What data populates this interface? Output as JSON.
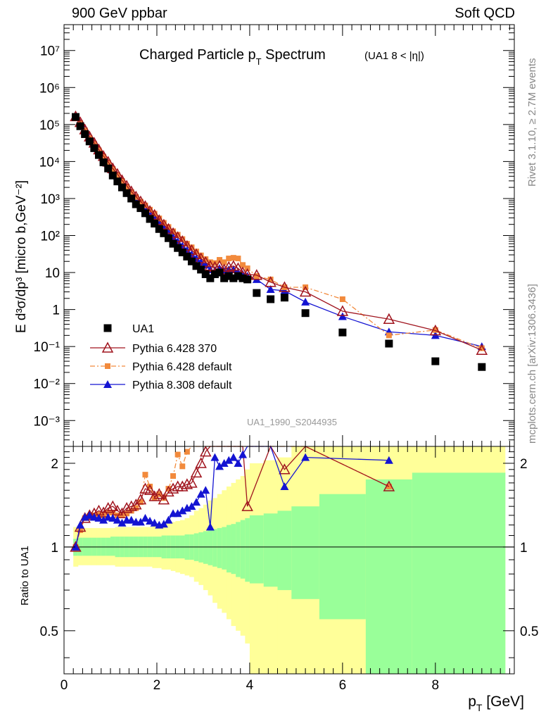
{
  "header": {
    "left": "900 GeV ppbar",
    "right": "Soft QCD"
  },
  "side_text": {
    "rivet": "Rivet 3.1.10, ≥ 2.7M events",
    "source": "mcplots.cern.ch [arXiv:1306.3436]"
  },
  "chart_data": [
    {
      "type": "scatter",
      "panel": "main",
      "title_main": "Charged Particle p",
      "title_sub": "T",
      "title_rest": " Spectrum",
      "title_cut": "(UA1   8 < |η|)",
      "ylabel": "E d³σ/dp³ [micro b,GeV⁻²]",
      "watermark": "UA1_1990_S2044935",
      "yscale": "log",
      "xlim": [
        0,
        9.7
      ],
      "ylim": [
        0.0002,
        50000000
      ],
      "ytick_labels": [
        "10⁷",
        "10⁶",
        "10⁵",
        "10⁴",
        "10³",
        "10²",
        "10",
        "1",
        "10⁻¹",
        "10⁻²",
        "10⁻³"
      ],
      "ytick_values": [
        10000000,
        1000000,
        100000,
        10000,
        1000,
        100,
        10,
        1,
        0.1,
        0.01,
        0.001
      ],
      "legend_placement": "lower-left",
      "x": [
        0.25,
        0.35,
        0.45,
        0.55,
        0.65,
        0.75,
        0.85,
        0.95,
        1.05,
        1.15,
        1.25,
        1.35,
        1.45,
        1.55,
        1.65,
        1.75,
        1.85,
        1.95,
        2.05,
        2.15,
        2.25,
        2.35,
        2.45,
        2.55,
        2.65,
        2.75,
        2.85,
        2.95,
        3.05,
        3.15,
        3.25,
        3.35,
        3.45,
        3.55,
        3.65,
        3.75,
        3.85,
        3.95,
        4.15,
        4.45,
        4.75,
        5.2,
        6.0,
        7.0,
        8.0,
        9.0
      ],
      "series": [
        {
          "name": "UA1",
          "marker": "square",
          "color": "#000000",
          "line": "none",
          "values": [
            160000,
            90000,
            55000,
            35000,
            23000,
            15000,
            9500,
            6500,
            4200,
            2900,
            2000,
            1400,
            1000,
            700,
            550,
            400,
            280,
            210,
            150,
            115,
            85,
            60,
            46,
            35,
            27,
            20,
            15,
            12,
            9,
            7,
            9,
            10,
            7,
            8,
            7,
            8,
            7,
            6.5,
            2.8,
            1.9,
            2.1,
            0.8,
            0.24,
            0.12,
            0.04,
            0.028
          ]
        },
        {
          "name": "Pythia 6.428 370",
          "marker": "triangle-open",
          "color": "#a0141e",
          "line": "solid",
          "values": [
            165000,
            115000,
            73000,
            47000,
            32000,
            21000,
            14000,
            9800,
            6500,
            4600,
            3100,
            2200,
            1550,
            1120,
            830,
            620,
            460,
            360,
            260,
            195,
            150,
            115,
            90,
            70,
            52,
            40,
            31,
            24,
            19,
            15,
            14,
            15,
            12,
            14,
            15,
            13,
            10,
            9,
            8.5,
            5.5,
            4.0,
            3.0,
            0.9,
            0.55,
            0.27,
            0.08
          ]
        },
        {
          "name": "Pythia 6.428 default",
          "marker": "square-small",
          "color": "#f28a3c",
          "line": "dashdot",
          "values": [
            165000,
            110000,
            70000,
            44000,
            30000,
            20000,
            13500,
            9400,
            6300,
            4300,
            3000,
            2100,
            1500,
            1100,
            820,
            650,
            500,
            390,
            290,
            220,
            170,
            130,
            105,
            80,
            60,
            48,
            37,
            29,
            23,
            19,
            18,
            22,
            19,
            24,
            25,
            24,
            16,
            13,
            8,
            6.5,
            4.0,
            4.0,
            1.9,
            0.2,
            0.28,
            0.09
          ]
        },
        {
          "name": "Pythia 8.308 default",
          "marker": "triangle",
          "color": "#1414d2",
          "line": "solid",
          "values": [
            160000,
            110000,
            70000,
            45000,
            30000,
            19500,
            12800,
            8800,
            5800,
            4000,
            2800,
            1900,
            1350,
            970,
            710,
            520,
            380,
            290,
            210,
            160,
            120,
            90,
            68,
            52,
            40,
            31,
            24,
            19,
            16,
            12,
            11,
            13,
            11,
            12,
            12,
            10,
            9,
            8,
            6.5,
            3.5,
            3.2,
            1.6,
            0.65,
            0.25,
            0.2,
            0.1
          ]
        }
      ]
    },
    {
      "type": "scatter",
      "panel": "ratio",
      "ylabel": "Ratio to UA1",
      "xlabel_main": "p",
      "xlabel_sub": "T",
      "xlabel_rest": " [GeV]",
      "xlim": [
        0,
        9.7
      ],
      "ylim": [
        0.35,
        2.3
      ],
      "ytick_labels": [
        "0.5",
        "1",
        "2"
      ],
      "ytick_values": [
        0.5,
        1,
        2
      ],
      "xtick_labels": [
        "0",
        "2",
        "4",
        "6",
        "8"
      ],
      "xtick_values": [
        0,
        2,
        4,
        6,
        8
      ],
      "band_colors": {
        "inner": "#99ff99",
        "outer": "#ffff99"
      },
      "bands": {
        "edges": [
          0.2,
          0.3,
          0.4,
          0.5,
          0.6,
          0.7,
          0.8,
          0.9,
          1.0,
          1.1,
          1.2,
          1.3,
          1.4,
          1.5,
          1.6,
          1.7,
          1.8,
          1.9,
          2.0,
          2.1,
          2.2,
          2.3,
          2.4,
          2.5,
          2.6,
          2.7,
          2.8,
          2.9,
          3.0,
          3.1,
          3.2,
          3.3,
          3.4,
          3.5,
          3.6,
          3.7,
          3.8,
          3.9,
          4.0,
          4.3,
          4.6,
          4.9,
          5.5,
          6.5,
          7.5,
          9.5
        ],
        "inner_lo": [
          0.93,
          0.93,
          0.93,
          0.93,
          0.93,
          0.93,
          0.93,
          0.93,
          0.93,
          0.92,
          0.92,
          0.92,
          0.92,
          0.92,
          0.92,
          0.92,
          0.92,
          0.92,
          0.92,
          0.91,
          0.91,
          0.91,
          0.91,
          0.91,
          0.9,
          0.9,
          0.89,
          0.88,
          0.87,
          0.86,
          0.85,
          0.84,
          0.83,
          0.81,
          0.8,
          0.78,
          0.77,
          0.75,
          0.74,
          0.72,
          0.7,
          0.65,
          0.55,
          0.35,
          0.35
        ],
        "inner_hi": [
          1.07,
          1.08,
          1.08,
          1.08,
          1.08,
          1.08,
          1.08,
          1.08,
          1.09,
          1.09,
          1.09,
          1.09,
          1.09,
          1.09,
          1.09,
          1.09,
          1.09,
          1.09,
          1.09,
          1.1,
          1.1,
          1.1,
          1.1,
          1.1,
          1.11,
          1.11,
          1.12,
          1.13,
          1.14,
          1.15,
          1.16,
          1.17,
          1.18,
          1.2,
          1.21,
          1.23,
          1.25,
          1.27,
          1.3,
          1.32,
          1.35,
          1.4,
          1.55,
          1.75,
          1.85
        ],
        "outer_lo": [
          0.85,
          0.86,
          0.86,
          0.86,
          0.86,
          0.86,
          0.86,
          0.86,
          0.86,
          0.85,
          0.85,
          0.85,
          0.85,
          0.85,
          0.85,
          0.85,
          0.85,
          0.84,
          0.84,
          0.83,
          0.83,
          0.82,
          0.81,
          0.8,
          0.79,
          0.78,
          0.75,
          0.73,
          0.7,
          0.67,
          0.63,
          0.6,
          0.58,
          0.55,
          0.52,
          0.5,
          0.48,
          0.45,
          0.35,
          0.35,
          0.35,
          0.35,
          0.35,
          0.35,
          0.35
        ],
        "outer_hi": [
          1.18,
          1.17,
          1.17,
          1.17,
          1.17,
          1.17,
          1.17,
          1.17,
          1.17,
          1.18,
          1.18,
          1.18,
          1.18,
          1.18,
          1.18,
          1.18,
          1.18,
          1.19,
          1.2,
          1.21,
          1.22,
          1.23,
          1.24,
          1.25,
          1.27,
          1.3,
          1.35,
          1.38,
          1.42,
          1.47,
          1.5,
          1.55,
          1.6,
          1.65,
          1.7,
          1.75,
          1.8,
          1.9,
          2.0,
          2.05,
          2.1,
          2.3,
          2.3,
          2.3,
          2.3
        ]
      },
      "x": [
        0.25,
        0.35,
        0.45,
        0.55,
        0.65,
        0.75,
        0.85,
        0.95,
        1.05,
        1.15,
        1.25,
        1.35,
        1.45,
        1.55,
        1.65,
        1.75,
        1.85,
        1.95,
        2.05,
        2.15,
        2.25,
        2.35,
        2.45,
        2.55,
        2.65,
        2.75,
        2.85,
        2.95,
        3.05,
        3.15,
        3.25,
        3.35,
        3.45,
        3.55,
        3.65,
        3.75,
        3.85,
        3.95,
        4.45,
        4.75,
        5.2,
        7.0
      ],
      "series": [
        {
          "name": "Pythia 6.428 370",
          "marker": "triangle-open",
          "color": "#a0141e",
          "line": "solid",
          "values": [
            1.0,
            1.18,
            1.27,
            1.3,
            1.32,
            1.35,
            1.33,
            1.38,
            1.4,
            1.35,
            1.32,
            1.38,
            1.4,
            1.42,
            1.48,
            1.62,
            1.6,
            1.52,
            1.55,
            1.48,
            1.58,
            1.62,
            1.65,
            1.65,
            1.68,
            1.7,
            1.85,
            2.0,
            2.2,
            2.3,
            2.3,
            2.3,
            2.3,
            2.3,
            2.3,
            2.3,
            2.3,
            1.4,
            2.3,
            1.9,
            2.3,
            1.65
          ]
        },
        {
          "name": "Pythia 6.428 default",
          "marker": "square-small",
          "color": "#f28a3c",
          "line": "dashdot",
          "values": [
            1.0,
            1.15,
            1.27,
            1.29,
            1.3,
            1.31,
            1.3,
            1.33,
            1.33,
            1.3,
            1.3,
            1.32,
            1.35,
            1.38,
            1.45,
            1.82,
            1.65,
            1.5,
            1.55,
            1.5,
            1.62,
            1.8,
            2.15,
            1.95,
            2.2,
            2.3,
            2.3,
            2.3,
            2.3,
            2.3,
            2.3,
            2.3,
            2.3,
            2.3,
            2.3,
            2.3,
            2.3,
            2.3,
            2.3,
            2.3,
            2.3,
            1.65
          ]
        },
        {
          "name": "Pythia 8.308 default",
          "marker": "triangle",
          "color": "#1414d2",
          "line": "solid",
          "values": [
            1.0,
            1.2,
            1.28,
            1.3,
            1.28,
            1.27,
            1.25,
            1.28,
            1.27,
            1.25,
            1.22,
            1.25,
            1.25,
            1.23,
            1.23,
            1.27,
            1.24,
            1.22,
            1.2,
            1.21,
            1.25,
            1.32,
            1.32,
            1.35,
            1.38,
            1.4,
            1.45,
            1.55,
            1.6,
            1.18,
            2.1,
            1.95,
            2.0,
            2.05,
            2.1,
            2.0,
            2.15,
            2.3,
            2.3,
            1.65,
            2.1,
            2.05
          ]
        }
      ]
    }
  ]
}
